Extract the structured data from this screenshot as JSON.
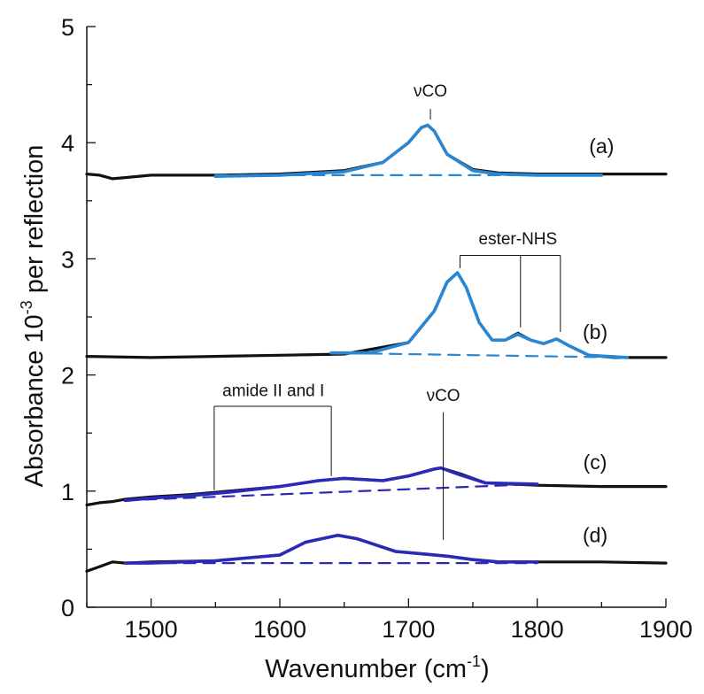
{
  "chart_data": {
    "type": "line",
    "xlabel": "Wavenumber (cm",
    "xlabel_sup": "-1",
    "xlabel_end": ")",
    "ylabel": "Absorbance 10",
    "ylabel_sup": "-3",
    "ylabel_end": " per reflection",
    "xlim": [
      1450,
      1900
    ],
    "ylim": [
      0,
      5
    ],
    "xticks": [
      1500,
      1600,
      1700,
      1800,
      1900
    ],
    "yticks": [
      0,
      1,
      2,
      3,
      4,
      5
    ],
    "grid": false,
    "colors": {
      "measured": "#111111",
      "fit_light": "#2a86d1",
      "fit_dark": "#2a2ab8"
    },
    "series": [
      {
        "id": "a",
        "label": "(a)",
        "kind": "measured",
        "x": [
          1450,
          1460,
          1470,
          1480,
          1500,
          1550,
          1600,
          1650,
          1680,
          1700,
          1710,
          1715,
          1720,
          1730,
          1750,
          1770,
          1800,
          1850,
          1900
        ],
        "y": [
          3.73,
          3.72,
          3.69,
          3.7,
          3.72,
          3.72,
          3.73,
          3.76,
          3.83,
          4.0,
          4.13,
          4.15,
          4.1,
          3.9,
          3.77,
          3.74,
          3.73,
          3.73,
          3.73
        ]
      },
      {
        "id": "a_fit",
        "kind": "fit",
        "color": "light",
        "x": [
          1550,
          1600,
          1650,
          1680,
          1700,
          1710,
          1715,
          1720,
          1730,
          1750,
          1770,
          1800,
          1850
        ],
        "y": [
          3.71,
          3.72,
          3.75,
          3.83,
          4.0,
          4.13,
          4.15,
          4.1,
          3.9,
          3.76,
          3.73,
          3.72,
          3.72
        ]
      },
      {
        "id": "a_base",
        "kind": "baseline",
        "color": "light",
        "x": [
          1550,
          1850
        ],
        "y": [
          3.72,
          3.72
        ]
      },
      {
        "id": "b",
        "label": "(b)",
        "kind": "measured",
        "x": [
          1450,
          1500,
          1550,
          1600,
          1650,
          1700,
          1720,
          1730,
          1738,
          1745,
          1755,
          1765,
          1775,
          1785,
          1795,
          1805,
          1815,
          1825,
          1840,
          1860,
          1900
        ],
        "y": [
          2.16,
          2.15,
          2.16,
          2.17,
          2.18,
          2.28,
          2.55,
          2.8,
          2.88,
          2.75,
          2.45,
          2.3,
          2.3,
          2.36,
          2.3,
          2.27,
          2.31,
          2.25,
          2.17,
          2.15,
          2.15
        ]
      },
      {
        "id": "b_fit",
        "kind": "fit",
        "color": "light",
        "x": [
          1640,
          1670,
          1700,
          1720,
          1730,
          1738,
          1745,
          1755,
          1765,
          1775,
          1785,
          1795,
          1805,
          1815,
          1825,
          1840,
          1870
        ],
        "y": [
          2.19,
          2.19,
          2.28,
          2.55,
          2.8,
          2.88,
          2.75,
          2.45,
          2.3,
          2.3,
          2.35,
          2.3,
          2.27,
          2.31,
          2.25,
          2.17,
          2.15
        ]
      },
      {
        "id": "b_base",
        "kind": "baseline",
        "color": "light",
        "x": [
          1640,
          1870
        ],
        "y": [
          2.19,
          2.15
        ]
      },
      {
        "id": "c",
        "label": "(c)",
        "kind": "measured",
        "x": [
          1450,
          1460,
          1470,
          1480,
          1500,
          1530,
          1560,
          1600,
          1630,
          1650,
          1680,
          1700,
          1720,
          1725,
          1740,
          1760,
          1800,
          1850,
          1900
        ],
        "y": [
          0.88,
          0.9,
          0.91,
          0.93,
          0.95,
          0.97,
          1.0,
          1.04,
          1.09,
          1.11,
          1.09,
          1.13,
          1.19,
          1.2,
          1.15,
          1.07,
          1.05,
          1.04,
          1.04
        ]
      },
      {
        "id": "c_fit",
        "kind": "fit",
        "color": "dark",
        "x": [
          1480,
          1500,
          1530,
          1560,
          1600,
          1630,
          1650,
          1680,
          1700,
          1720,
          1725,
          1740,
          1760,
          1800
        ],
        "y": [
          0.92,
          0.94,
          0.96,
          0.99,
          1.04,
          1.09,
          1.11,
          1.09,
          1.13,
          1.19,
          1.2,
          1.14,
          1.07,
          1.06
        ]
      },
      {
        "id": "c_base",
        "kind": "baseline",
        "color": "dark",
        "x": [
          1480,
          1800
        ],
        "y": [
          0.92,
          1.06
        ]
      },
      {
        "id": "d",
        "label": "(d)",
        "kind": "measured",
        "x": [
          1450,
          1460,
          1470,
          1480,
          1500,
          1550,
          1600,
          1620,
          1645,
          1660,
          1690,
          1710,
          1730,
          1750,
          1770,
          1800,
          1850,
          1900
        ],
        "y": [
          0.31,
          0.35,
          0.39,
          0.38,
          0.39,
          0.4,
          0.45,
          0.56,
          0.62,
          0.59,
          0.48,
          0.46,
          0.44,
          0.41,
          0.39,
          0.39,
          0.39,
          0.38
        ]
      },
      {
        "id": "d_fit",
        "kind": "fit",
        "color": "dark",
        "x": [
          1480,
          1500,
          1550,
          1600,
          1620,
          1645,
          1660,
          1690,
          1710,
          1730,
          1750,
          1770,
          1800
        ],
        "y": [
          0.38,
          0.38,
          0.4,
          0.45,
          0.56,
          0.62,
          0.59,
          0.48,
          0.46,
          0.44,
          0.41,
          0.39,
          0.39
        ]
      },
      {
        "id": "d_base",
        "kind": "baseline",
        "color": "dark",
        "x": [
          1480,
          1800
        ],
        "y": [
          0.38,
          0.38
        ]
      }
    ],
    "annotations": [
      {
        "id": "vco_top",
        "text": "νCO",
        "x": 1717,
        "y": 4.45,
        "lines": [
          {
            "x1": 1717,
            "y1": 4.29,
            "x2": 1717,
            "y2": 4.2
          }
        ]
      },
      {
        "id": "ester_nhs",
        "text": "ester-NHS",
        "x": 1785,
        "y": 3.18,
        "lines": [
          {
            "x1": 1740,
            "y1": 3.03,
            "x2": 1818,
            "y2": 3.03
          },
          {
            "x1": 1740,
            "y1": 3.03,
            "x2": 1740,
            "y2": 2.92
          },
          {
            "x1": 1787,
            "y1": 3.03,
            "x2": 1787,
            "y2": 2.41
          },
          {
            "x1": 1818,
            "y1": 3.03,
            "x2": 1818,
            "y2": 2.37
          }
        ]
      },
      {
        "id": "amide",
        "text": "amide II and I",
        "x": 1595,
        "y": 1.87,
        "lines": [
          {
            "x1": 1549,
            "y1": 1.73,
            "x2": 1640,
            "y2": 1.73
          },
          {
            "x1": 1549,
            "y1": 1.73,
            "x2": 1549,
            "y2": 1.01
          },
          {
            "x1": 1640,
            "y1": 1.73,
            "x2": 1640,
            "y2": 1.13
          }
        ]
      },
      {
        "id": "vco_mid",
        "text": "νCO",
        "x": 1727,
        "y": 1.83,
        "lines": [
          {
            "x1": 1727,
            "y1": 1.68,
            "x2": 1727,
            "y2": 0.58
          }
        ]
      }
    ],
    "curve_labels": [
      {
        "text": "(a)",
        "x": 1850,
        "y": 3.97
      },
      {
        "text": "(b)",
        "x": 1845,
        "y": 2.37
      },
      {
        "text": "(c)",
        "x": 1845,
        "y": 1.25
      },
      {
        "text": "(d)",
        "x": 1845,
        "y": 0.62
      }
    ]
  }
}
